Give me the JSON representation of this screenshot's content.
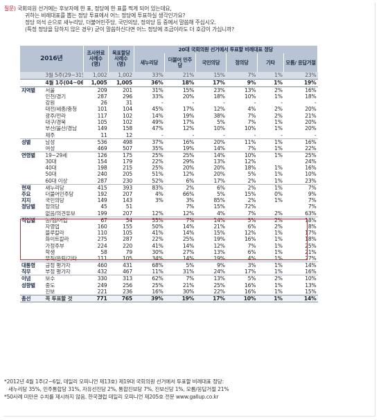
{
  "question": {
    "tag": "질문)",
    "lines": [
      "국회의원 선거에는 후보자에 한 표, 정당에 한 표를 찍게 되어 있는데요,",
      "귀하는 비례대표를 뽑는 정당 투표에서 어느 정당에 투표하실 생각인가요?",
      "정당 의석 순으로 새누리당, 더불어민주당, 국민의당, 정의당 등 중에서 말씀해 주십시오.",
      "(특정 정당을 답하지 않은 경우) 굳이 말씀하신다면 어느 정당에 조금이라도 더 호감이 가십니까?"
    ]
  },
  "table": {
    "year_label": "2016년",
    "header": {
      "sample_done": "조사완료 사례수 (명)",
      "sample_weighted": "목표할당 사례수 (명)",
      "group_title": "20대 국회의원 선거에서 투표할 비례대표 정당",
      "parties": [
        "새누리당",
        "더불어 민주당",
        "국민의당",
        "정의당",
        "기타",
        "모름/ 응답거절"
      ]
    },
    "rows": [
      {
        "type": "prev",
        "grp": "",
        "lbl": "3월 5주(29~31일)",
        "n1": "1,002",
        "n2": "1,002",
        "v": [
          "33%",
          "21%",
          "15%",
          "7%",
          "1%",
          "23%"
        ]
      },
      {
        "type": "total",
        "grp": "",
        "lbl": "4월 1주(04~06일)",
        "n1": "1,005",
        "n2": "1,005",
        "v": [
          "36%",
          "18%",
          "17%",
          "9%",
          "1%",
          "19%"
        ]
      },
      {
        "type": "section",
        "grp": "지역별",
        "lbl": "서울",
        "n1": "209",
        "n2": "201",
        "v": [
          "31%",
          "15%",
          "23%",
          "13%",
          "2%",
          "16%"
        ]
      },
      {
        "grp": "",
        "lbl": "인천/경기",
        "n1": "287",
        "n2": "296",
        "v": [
          "33%",
          "20%",
          "18%",
          "10%",
          "1%",
          "18%"
        ]
      },
      {
        "grp": "",
        "lbl": "강원",
        "n1": "26",
        "n2": "31",
        "v": [
          "-",
          "-",
          "-",
          "-",
          "-",
          "-"
        ]
      },
      {
        "grp": "",
        "lbl": "대전/세종/충청",
        "n1": "101",
        "n2": "104",
        "v": [
          "45%",
          "17%",
          "12%",
          "4%",
          "2%",
          "20%"
        ]
      },
      {
        "grp": "",
        "lbl": "광주/전라",
        "n1": "117",
        "n2": "102",
        "v": [
          "14%",
          "19%",
          "38%",
          "7%",
          "2%",
          "21%"
        ]
      },
      {
        "grp": "",
        "lbl": "대구/경북",
        "n1": "105",
        "n2": "102",
        "v": [
          "49%",
          "17%",
          "5%",
          "7%",
          "1%",
          "20%"
        ]
      },
      {
        "grp": "",
        "lbl": "부산/울산/경남",
        "n1": "149",
        "n2": "158",
        "v": [
          "47%",
          "12%",
          "10%",
          "10%",
          "1%",
          "20%"
        ]
      },
      {
        "grp": "",
        "lbl": "제주",
        "n1": "11",
        "n2": "12",
        "v": [
          "-",
          "-",
          "-",
          "-",
          "-",
          "-"
        ]
      },
      {
        "type": "section",
        "grp": "성별",
        "lbl": "남성",
        "n1": "536",
        "n2": "498",
        "v": [
          "37%",
          "16%",
          "20%",
          "11%",
          "1%",
          "16%"
        ]
      },
      {
        "grp": "",
        "lbl": "여성",
        "n1": "469",
        "n2": "507",
        "v": [
          "35%",
          "19%",
          "14%",
          "7%",
          "1%",
          "22%"
        ]
      },
      {
        "type": "section",
        "grp": "연령별",
        "lbl": "19~29세",
        "n1": "126",
        "n2": "175",
        "v": [
          "25%",
          "25%",
          "14%",
          "10%",
          "1%",
          "25%"
        ]
      },
      {
        "grp": "",
        "lbl": "30대",
        "n1": "154",
        "n2": "179",
        "v": [
          "22%",
          "29%",
          "13%",
          "12%",
          "",
          "24%"
        ]
      },
      {
        "grp": "",
        "lbl": "40대",
        "n1": "198",
        "n2": "215",
        "v": [
          "25%",
          "20%",
          "20%",
          "18%",
          "1%",
          "16%"
        ]
      },
      {
        "grp": "",
        "lbl": "50대",
        "n1": "240",
        "n2": "205",
        "v": [
          "51%",
          "12%",
          "20%",
          "5%",
          "1%",
          "10%"
        ]
      },
      {
        "grp": "",
        "lbl": "60대 이상",
        "n1": "287",
        "n2": "230",
        "v": [
          "52%",
          "6%",
          "17%",
          "2%",
          "1%",
          "23%"
        ]
      },
      {
        "type": "section",
        "grp": "현재",
        "lbl": "새누리당",
        "n1": "415",
        "n2": "393",
        "v": [
          "83%",
          "2%",
          "6%",
          "2%",
          "1%",
          "7%"
        ]
      },
      {
        "grp": "주요",
        "lbl": "더불어민주당",
        "n1": "192",
        "n2": "207",
        "v": [
          "4%",
          "66%",
          "5%",
          "15%",
          "0%",
          "9%"
        ]
      },
      {
        "grp": "지지",
        "lbl": "국민의당",
        "n1": "149",
        "n2": "143",
        "v": [
          "3%",
          "3%",
          "85%",
          "2%",
          "1%",
          "7%"
        ]
      },
      {
        "grp": "정당별",
        "lbl": "정의당",
        "n1": "45",
        "n2": "51",
        "v": [
          "",
          "7%",
          "15%",
          "72%",
          "",
          "7%"
        ]
      },
      {
        "grp": "",
        "lbl": "없음/의견유보",
        "n1": "199",
        "n2": "207",
        "v": [
          "12%",
          "12%",
          "4%",
          "7%",
          "2%",
          "63%"
        ]
      },
      {
        "type": "section",
        "grp": "직업별",
        "lbl": "농/임/어업",
        "n1": "67",
        "n2": "54",
        "v": [
          "55%",
          "7%",
          "14%",
          "5%",
          "2%",
          "18%"
        ]
      },
      {
        "grp": "",
        "lbl": "자영업",
        "n1": "160",
        "n2": "155",
        "v": [
          "50%",
          "14%",
          "21%",
          "6%",
          "2%",
          "8%"
        ]
      },
      {
        "grp": "",
        "lbl": "블루칼라",
        "n1": "110",
        "n2": "105",
        "v": [
          "41%",
          "14%",
          "15%",
          "12%",
          "1%",
          "17%"
        ]
      },
      {
        "grp": "",
        "lbl": "화이트칼라",
        "n1": "275",
        "n2": "287",
        "v": [
          "22%",
          "25%",
          "19%",
          "16%",
          "1%",
          "18%"
        ]
      },
      {
        "grp": "",
        "lbl": "가정주부",
        "n1": "224",
        "n2": "220",
        "v": [
          "41%",
          "14%",
          "12%",
          "7%",
          "1%",
          "25%"
        ]
      },
      {
        "grp": "",
        "lbl": "학생",
        "n1": "58",
        "n2": "79",
        "v": [
          "30%",
          "27%",
          "13%",
          "6%",
          "1%",
          "21%"
        ]
      },
      {
        "grp": "",
        "lbl": "무직/은퇴/기타",
        "n1": "111",
        "n2": "105",
        "v": [
          "34%",
          "14%",
          "19%",
          "4%",
          "1%",
          "27%"
        ]
      },
      {
        "type": "section",
        "grp": "대통령",
        "lbl": "긍정 평가자",
        "n1": "460",
        "n2": "431",
        "v": [
          "68%",
          "5%",
          "9%",
          "3%",
          "1%",
          "14%"
        ]
      },
      {
        "grp": "직무",
        "lbl": "부정 평가자",
        "n1": "432",
        "n2": "467",
        "v": [
          "11%",
          "31%",
          "24%",
          "17%",
          "1%",
          "16%"
        ]
      },
      {
        "type": "section",
        "grp": "이념",
        "lbl": "보수",
        "n1": "330",
        "n2": "313",
        "v": [
          "62%",
          "7%",
          "13%",
          "5%",
          "2%",
          "10%"
        ]
      },
      {
        "grp": "성향별",
        "lbl": "중도",
        "n1": "249",
        "n2": "256",
        "v": [
          "25%",
          "21%",
          "25%",
          "16%",
          "1%",
          "13%"
        ]
      },
      {
        "grp": "",
        "lbl": "진보",
        "n1": "221",
        "n2": "236",
        "v": [
          "16%",
          "30%",
          "22%",
          "16%",
          "1%",
          "15%"
        ]
      },
      {
        "type": "final",
        "grp": "총선",
        "lbl": "꼭 투표할 것",
        "n1": "771",
        "n2": "765",
        "v": [
          "39%",
          "19%",
          "17%",
          "10%",
          "1%",
          "14%"
        ]
      }
    ]
  },
  "notes": [
    "*2012년 4월 1주(2~6일, 데일리 오피니언 제13호) 제19대 국회의원 선거에서 투표할 비례대표 정당:",
    "새누리당 35%, 민주통합당 31%, 자유선진당 2%, 통합진보당 7%, 진보신당 1%, 모름/응답거절 21%",
    "*50사례 미만은 수치를 제시하지 않음. 한국갤럽 데일리 오피니언 제205호 전문 www.gallup.co.kr"
  ],
  "colors": {
    "header_bg": "#b8c4d3",
    "prev_row_bg": "#d7dde6",
    "highlight_box": "#c0282d",
    "question_tag": "#c8102e"
  }
}
